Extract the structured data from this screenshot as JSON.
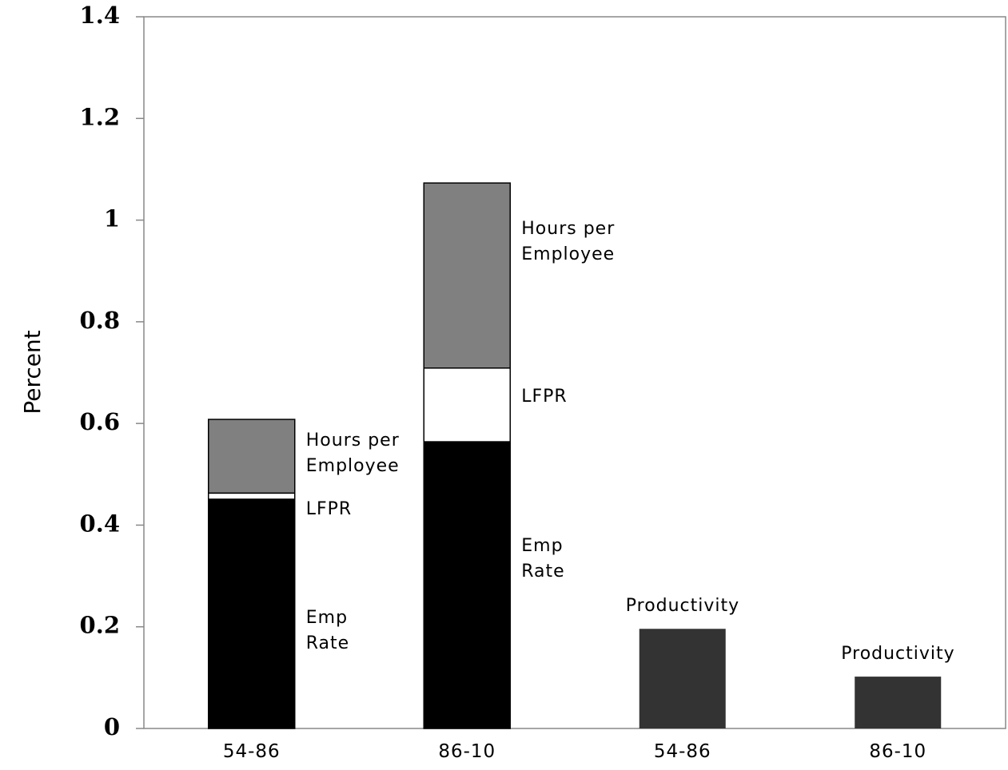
{
  "chart_data": {
    "type": "stacked_bar",
    "ylabel": "Percent",
    "categories": [
      "54-86",
      "86-10",
      "54-86",
      "86-10"
    ],
    "series": [
      {
        "name": "Emp\nRate",
        "color": "#000000",
        "values": [
          0.451,
          0.564,
          null,
          null
        ]
      },
      {
        "name": "LFPR",
        "color": "#ffffff",
        "values": [
          0.012,
          0.145,
          null,
          null
        ]
      },
      {
        "name": "Hours per\nEmployee",
        "color": "#808080",
        "values": [
          0.145,
          0.364,
          null,
          null
        ]
      },
      {
        "name": "Productivity",
        "color": "#333333",
        "values": [
          null,
          null,
          0.196,
          0.102
        ]
      }
    ],
    "ylim": [
      0,
      1.4
    ],
    "yticks": [
      0,
      0.2,
      0.4,
      0.6,
      0.8,
      1,
      1.2,
      1.4
    ],
    "grid": false
  }
}
